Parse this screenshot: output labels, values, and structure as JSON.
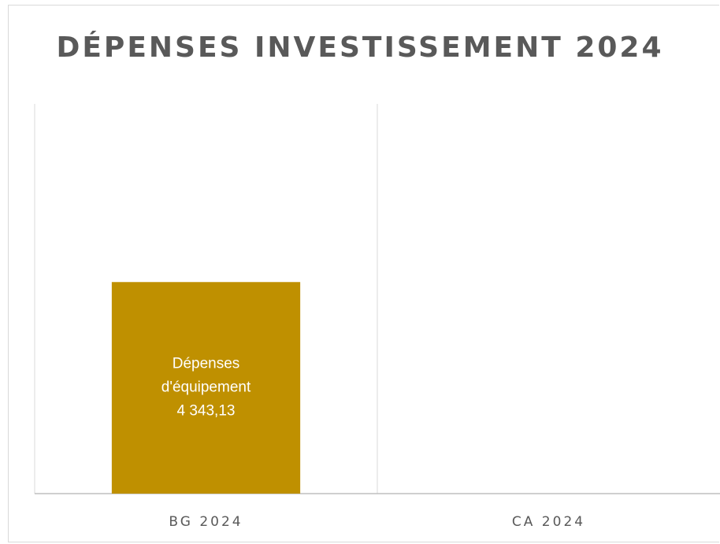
{
  "chart_data": {
    "type": "bar",
    "title": "DÉPENSES INVESTISSEMENT 2024",
    "xlabel": "",
    "ylabel": "",
    "categories": [
      "BG 2024",
      "CA 2024"
    ],
    "series": [
      {
        "name": "Dépenses d'équipement",
        "values": [
          4343.13,
          0
        ],
        "label_lines": [
          "Dépenses",
          "d'équipement",
          "4 343,13"
        ]
      }
    ],
    "ylim": [
      0,
      8000
    ],
    "grid": "vertical-category-separators",
    "legend": "none",
    "bar_color": "#bf9000"
  }
}
